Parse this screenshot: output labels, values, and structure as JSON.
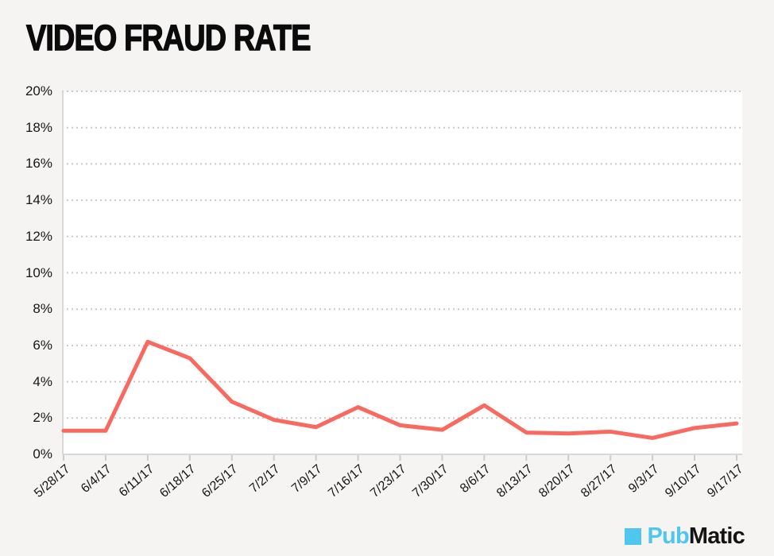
{
  "header": {
    "title": "VIDEO FRAUD RATE"
  },
  "chart_data": {
    "type": "line",
    "title": "VIDEO FRAUD RATE",
    "categories": [
      "5/28/17",
      "6/4/17",
      "6/11/17",
      "6/18/17",
      "6/25/17",
      "7/2/17",
      "7/9/17",
      "7/16/17",
      "7/23/17",
      "7/30/17",
      "8/6/17",
      "8/13/17",
      "8/20/17",
      "8/27/17",
      "9/3/17",
      "9/10/17",
      "9/17/17"
    ],
    "values": [
      1.3,
      1.3,
      6.2,
      5.3,
      2.9,
      1.9,
      1.5,
      2.6,
      1.6,
      1.35,
      2.7,
      1.2,
      1.15,
      1.25,
      0.9,
      1.45,
      1.7
    ],
    "unit": "%",
    "xlabel": "",
    "ylabel": "",
    "ylim": [
      0,
      20
    ],
    "yticks": [
      {
        "value": 0,
        "label": "0%"
      },
      {
        "value": 2,
        "label": "2%"
      },
      {
        "value": 4,
        "label": "4%"
      },
      {
        "value": 6,
        "label": "6%"
      },
      {
        "value": 8,
        "label": "8%"
      },
      {
        "value": 10,
        "label": "10%"
      },
      {
        "value": 12,
        "label": "12%"
      },
      {
        "value": 14,
        "label": "14%"
      },
      {
        "value": 16,
        "label": "16%"
      },
      {
        "value": 18,
        "label": "18%"
      },
      {
        "value": 20,
        "label": "20%"
      }
    ],
    "grid": "horizontal-dotted",
    "legend": "none",
    "line_color": "#f9695f",
    "line_width": 5
  },
  "colors": {
    "page_background": "#f5f4f3",
    "plot_background": "#ffffff",
    "grid": "#c9c9c9",
    "axis": "#d8d8d8",
    "tick": "#cccccc",
    "labels": "#161616",
    "title": "#0b0b0b"
  },
  "footer": {
    "logo": {
      "part1": "Pub",
      "part2": "Matic",
      "square_color": "#4ec6ed",
      "part1_color": "#4ec6ed",
      "part2_color": "#141414"
    }
  }
}
